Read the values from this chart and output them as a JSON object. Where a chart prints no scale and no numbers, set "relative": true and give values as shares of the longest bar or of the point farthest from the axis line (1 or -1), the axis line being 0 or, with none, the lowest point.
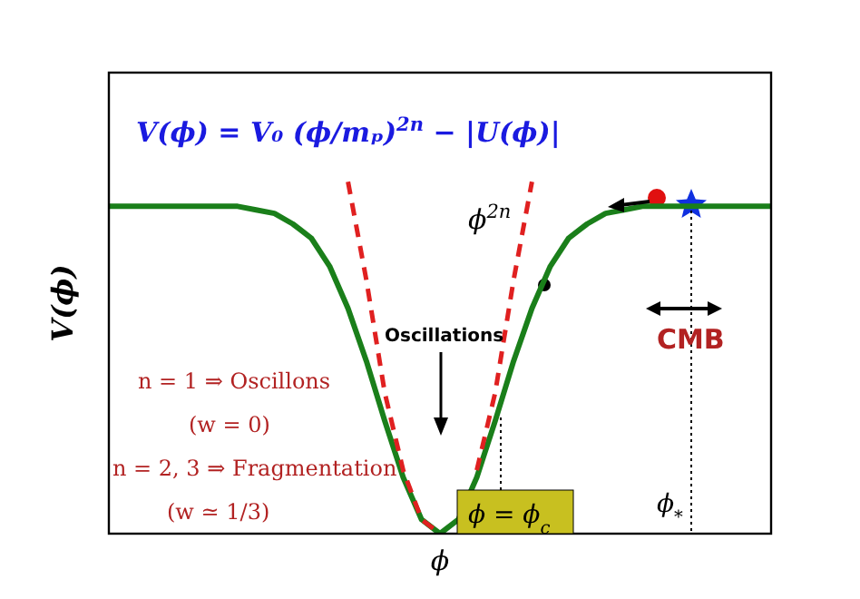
{
  "chart_data": {
    "type": "line",
    "relative": true,
    "xlabel": "ϕ",
    "ylabel": "V(ϕ)",
    "categories": [
      null,
      null,
      null,
      null,
      null,
      null,
      null,
      null,
      null,
      null,
      null,
      null,
      null,
      null,
      null,
      null,
      null,
      null,
      null,
      null,
      null,
      null,
      null,
      null,
      null,
      null,
      null,
      null,
      null,
      null,
      null,
      null,
      null,
      null,
      null,
      null,
      null
    ],
    "series": [
      {
        "type": "line",
        "color": "#1a7f1a",
        "line_style": "solid",
        "values": [
          0.93,
          0.93,
          0.93,
          0.93,
          0.93,
          0.93,
          0.93,
          0.93,
          0.92,
          0.91,
          0.88,
          0.84,
          0.76,
          0.64,
          0.49,
          0.32,
          0.16,
          0.04,
          0,
          0.04,
          0.16,
          0.32,
          0.49,
          0.64,
          0.76,
          0.84,
          0.88,
          0.91,
          0.92,
          0.93,
          0.93,
          0.93,
          0.93,
          0.93,
          0.93,
          0.93,
          0.93
        ]
      },
      {
        "type": "line",
        "color": "#e02020",
        "line_style": "dashed",
        "values": [
          null,
          null,
          null,
          null,
          null,
          null,
          null,
          null,
          null,
          null,
          null,
          null,
          null,
          1,
          0.72,
          0.4,
          0.18,
          0.04,
          0,
          null,
          0.18,
          0.4,
          0.72,
          1,
          null,
          null,
          null,
          null,
          null,
          null,
          null,
          null,
          null,
          null,
          null,
          null,
          null
        ]
      }
    ],
    "annotations": [
      "V(ϕ) = V₀ (ϕ/mₚ)$^{2n}$ − |U(ϕ)|",
      "ϕ$^{2n}$",
      "Oscillations",
      "CMB",
      "n = 1 ⇒ Oscillons",
      "(w = 0)",
      "n = 2, 3 ⇒ Fragmentation",
      "(w ≃ 1/3)",
      "ϕ = ϕ$_{c}$",
      "ϕ$_{*}$"
    ],
    "grid": false,
    "legend": false
  }
}
